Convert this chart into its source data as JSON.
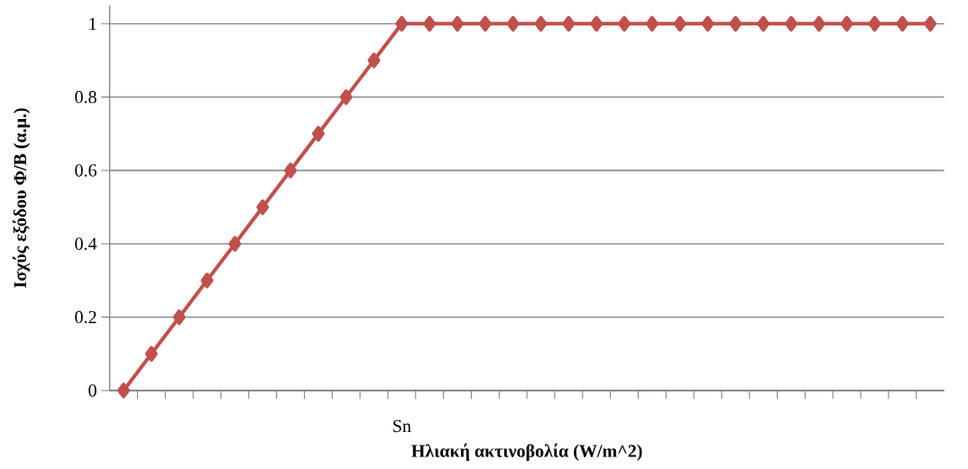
{
  "chart_data": {
    "type": "line",
    "xlabel": "Ηλιακή ακτινοβολία (W/m^2)",
    "ylabel": "Ισχύς εξόδου Φ/Β (α.μ.)",
    "categories": [
      null,
      null,
      null,
      null,
      null,
      null,
      null,
      null,
      null,
      null,
      "Sn",
      null,
      null,
      null,
      null,
      null,
      null,
      null,
      null,
      null,
      null,
      null,
      null,
      null,
      null,
      null,
      null,
      null,
      null,
      null
    ],
    "series": [
      {
        "color": "#c0504d",
        "values": [
          0,
          0.1,
          0.2,
          0.3,
          0.4,
          0.5,
          0.6,
          0.7,
          0.8,
          0.9,
          1,
          1,
          1,
          1,
          1,
          1,
          1,
          1,
          1,
          1,
          1,
          1,
          1,
          1,
          1,
          1,
          1,
          1,
          1,
          1
        ]
      }
    ],
    "ylim": [
      0,
      1.05
    ],
    "yticks": [
      0,
      0.2,
      0.4,
      0.6,
      0.8,
      1
    ],
    "grid": "y",
    "marker": "diamond",
    "line_style": "solid"
  }
}
